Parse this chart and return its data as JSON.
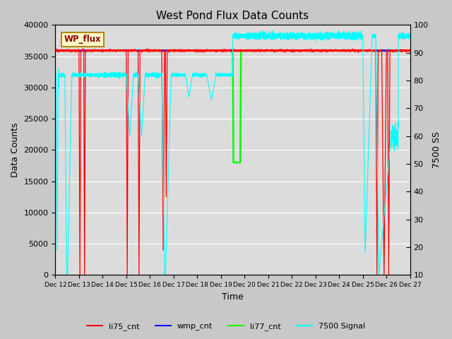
{
  "title": "West Pond Flux Data Counts",
  "xlabel": "Time",
  "ylabel_left": "Data Counts",
  "ylabel_right": "7500 SS",
  "annotation_text": "WP_flux",
  "ylim_left": [
    0,
    40000
  ],
  "ylim_right": [
    10,
    100
  ],
  "bg_color": "#c8c8c8",
  "plot_bg_color": "#dcdcdc",
  "title_fontsize": 11,
  "axis_fontsize": 9,
  "tick_fontsize": 8
}
